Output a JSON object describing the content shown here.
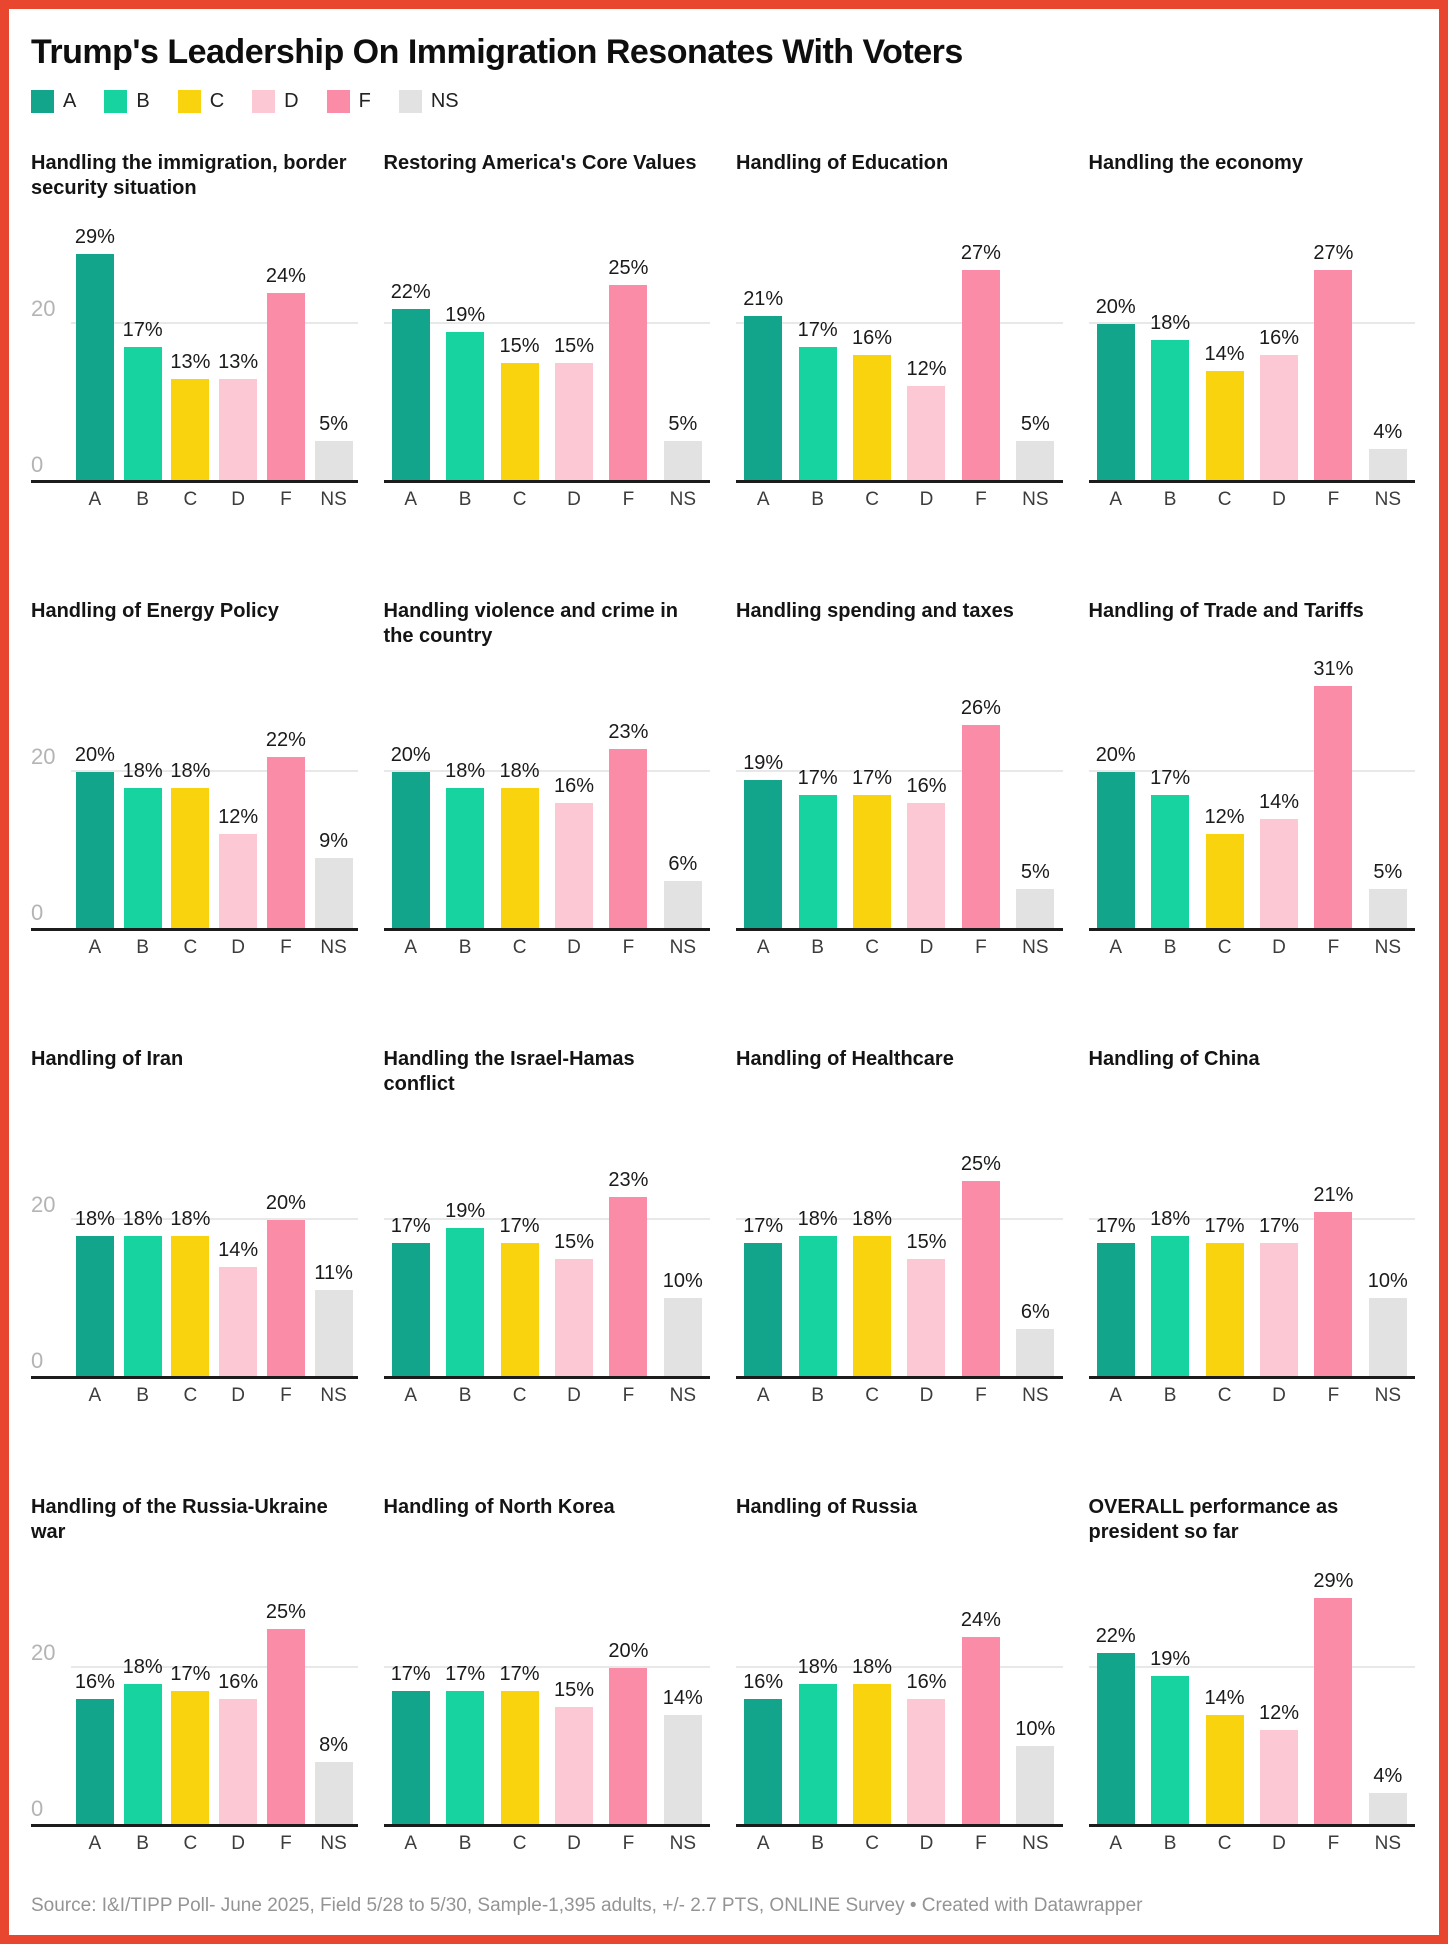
{
  "page": {
    "title": "Trump's Leadership On Immigration Resonates With Voters",
    "footer": "Source: I&I/TIPP Poll- June 2025, Field 5/28 to 5/30, Sample-1,395 adults, +/- 2.7 PTS, ONLINE Survey • Created with Datawrapper",
    "frame_color": "#e8462f"
  },
  "legend": {
    "items": [
      {
        "label": "A",
        "color": "#12a58c"
      },
      {
        "label": "B",
        "color": "#17d3a0"
      },
      {
        "label": "C",
        "color": "#f8d30e"
      },
      {
        "label": "D",
        "color": "#fbc8d4"
      },
      {
        "label": "F",
        "color": "#fa8ca8"
      },
      {
        "label": "NS",
        "color": "#e2e2e2"
      }
    ]
  },
  "chart_data": {
    "type": "bar",
    "unit": "%",
    "categories": [
      "A",
      "B",
      "C",
      "D",
      "F",
      "NS"
    ],
    "series_colors": [
      "#12a58c",
      "#17d3a0",
      "#f8d30e",
      "#fbc8d4",
      "#fa8ca8",
      "#e2e2e2"
    ],
    "ylim": [
      0,
      34
    ],
    "y_ticks": [
      0,
      20
    ],
    "grid": "single light horizontal gridline at y=20; y tick labels (20, 0) shown on first column panels only; black baseline at 0",
    "legend_position": "top-left",
    "value_labels": "percentage shown above each bar",
    "panels": [
      {
        "title": "Handling the immigration, border security situation",
        "values": [
          29,
          17,
          13,
          13,
          24,
          5
        ]
      },
      {
        "title": "Restoring America's Core Values",
        "values": [
          22,
          19,
          15,
          15,
          25,
          5
        ]
      },
      {
        "title": "Handling of Education",
        "values": [
          21,
          17,
          16,
          12,
          27,
          5
        ]
      },
      {
        "title": "Handling the economy",
        "values": [
          20,
          18,
          14,
          16,
          27,
          4
        ]
      },
      {
        "title": "Handling of Energy Policy",
        "values": [
          20,
          18,
          18,
          12,
          22,
          9
        ]
      },
      {
        "title": "Handling violence and crime in the country",
        "values": [
          20,
          18,
          18,
          16,
          23,
          6
        ]
      },
      {
        "title": "Handling spending and taxes",
        "values": [
          19,
          17,
          17,
          16,
          26,
          5
        ]
      },
      {
        "title": "Handling of Trade and Tariffs",
        "values": [
          20,
          17,
          12,
          14,
          31,
          5
        ]
      },
      {
        "title": "Handling of Iran",
        "values": [
          18,
          18,
          18,
          14,
          20,
          11
        ]
      },
      {
        "title": "Handling the Israel-Hamas conflict",
        "values": [
          17,
          19,
          17,
          15,
          23,
          10
        ]
      },
      {
        "title": "Handling of Healthcare",
        "values": [
          17,
          18,
          18,
          15,
          25,
          6
        ]
      },
      {
        "title": "Handling of China",
        "values": [
          17,
          18,
          17,
          17,
          21,
          10
        ]
      },
      {
        "title": "Handling of the Russia-Ukraine war",
        "values": [
          16,
          18,
          17,
          16,
          25,
          8
        ]
      },
      {
        "title": "Handling of North Korea",
        "values": [
          17,
          17,
          17,
          15,
          20,
          14
        ]
      },
      {
        "title": "Handling of Russia",
        "values": [
          16,
          18,
          18,
          16,
          24,
          10
        ]
      },
      {
        "title": "OVERALL performance as president so far",
        "values": [
          22,
          19,
          14,
          12,
          29,
          4
        ]
      }
    ]
  }
}
